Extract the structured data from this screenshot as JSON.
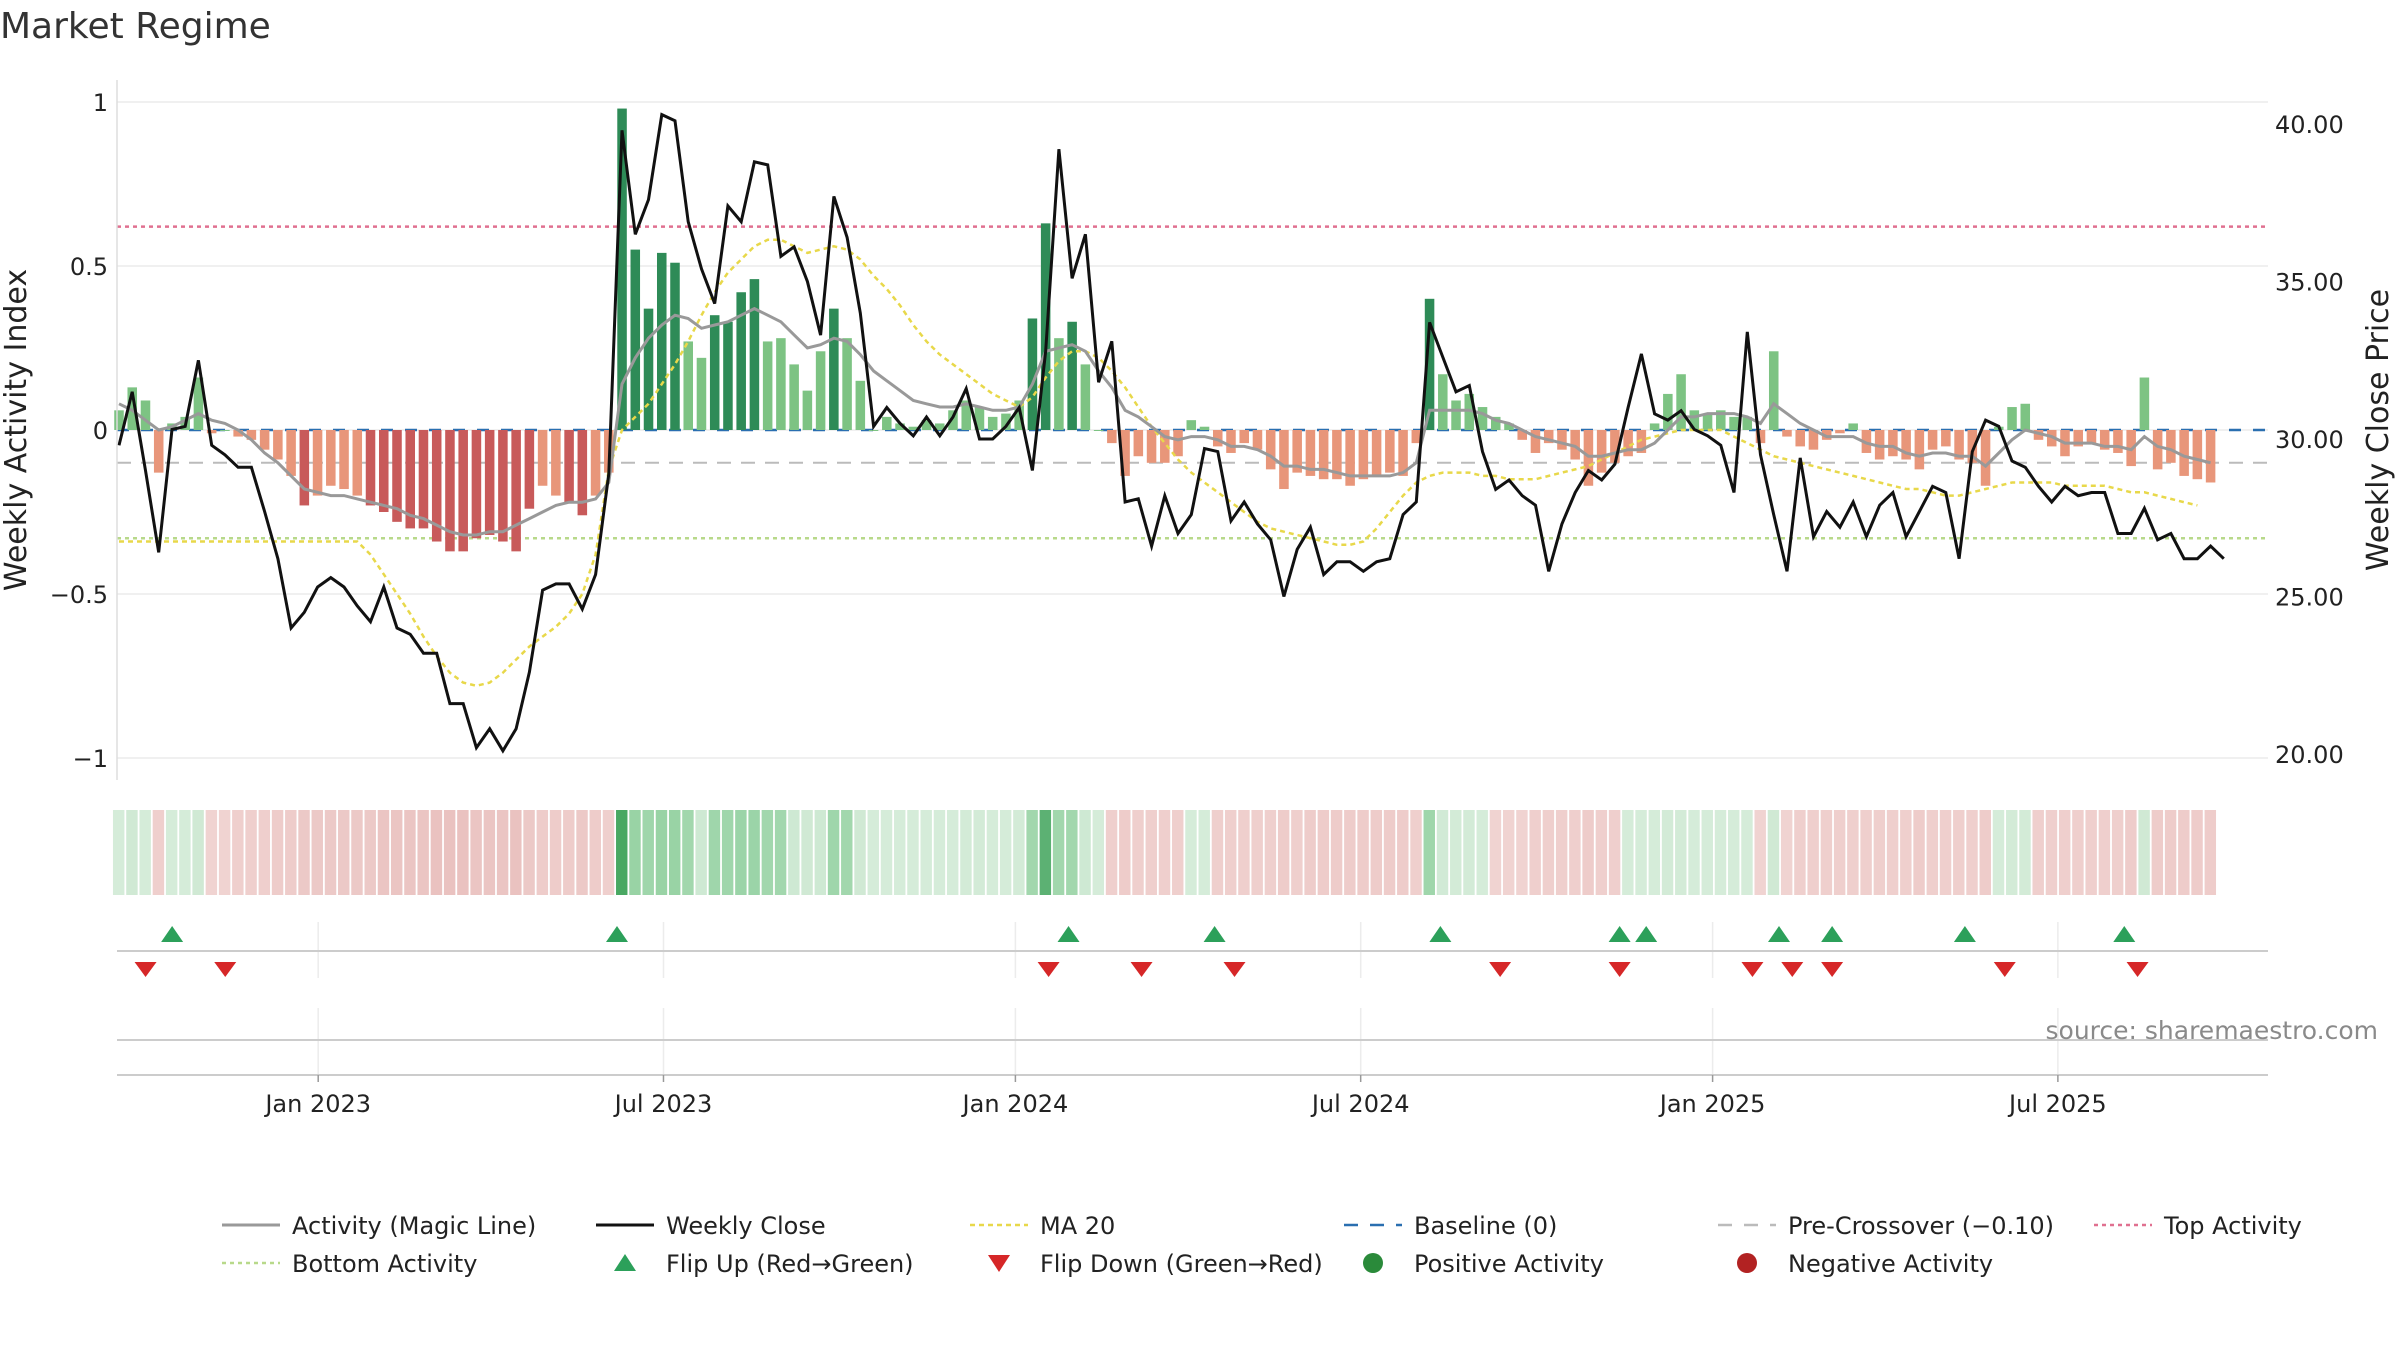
{
  "chart_data": {
    "type": "bar",
    "title": "Market Regime",
    "ylabel_left": "Weekly Activity Index",
    "ylabel_right": "Weekly Close Price",
    "source": "source: sharemaestro.com",
    "ylim_left": [
      -1.05,
      1.0
    ],
    "ylim_right": [
      19.5,
      41.0
    ],
    "left_ticks": [
      {
        "v": 1,
        "t": "1"
      },
      {
        "v": 0.5,
        "t": "0.5"
      },
      {
        "v": 0,
        "t": "0"
      },
      {
        "v": -0.5,
        "t": "−0.5"
      },
      {
        "v": -1,
        "t": "−1"
      }
    ],
    "right_ticks": [
      {
        "v": 40,
        "t": "40.00"
      },
      {
        "v": 35,
        "t": "35.00"
      },
      {
        "v": 30,
        "t": "30.00"
      },
      {
        "v": 25,
        "t": "25.00"
      },
      {
        "v": 20,
        "t": "20.00"
      }
    ],
    "x_ticks": [
      {
        "week": 30,
        "t": "Jan 2023"
      },
      {
        "week": 82,
        "t": "Jul 2023"
      },
      {
        "week": 135,
        "t": "Jan 2024"
      },
      {
        "week": 187,
        "t": "Jul 2024"
      },
      {
        "week": 240,
        "t": "Jan 2025"
      },
      {
        "week": 292,
        "t": "Jul 2025"
      }
    ],
    "levels": {
      "top_activity": 0.62,
      "bottom_activity": -0.33,
      "baseline": 0,
      "pre_crossover": -0.1
    },
    "colors": {
      "strong_green": "#2e8b57",
      "light_green": "#7dc383",
      "strong_red": "#c85a5a",
      "light_red": "#e8967a",
      "magic_line": "#999999",
      "close": "#111111",
      "ma20": "#e8d84a",
      "baseline": "#2a6fb0",
      "pre_crossover": "#bbbbbb",
      "top": "#e07090",
      "bottom": "#b8d98a",
      "flip_up": "#2ca05a",
      "flip_down": "#d62728",
      "positive": "#2a8a3a",
      "negative": "#b22222"
    },
    "weeks_total": 316,
    "activity": [
      0.06,
      0.13,
      0.09,
      -0.13,
      0.02,
      0.04,
      0.16,
      -0.01,
      0.0,
      -0.02,
      -0.03,
      -0.06,
      -0.09,
      -0.14,
      -0.23,
      -0.2,
      -0.17,
      -0.18,
      -0.2,
      -0.23,
      -0.25,
      -0.28,
      -0.3,
      -0.3,
      -0.34,
      -0.37,
      -0.37,
      -0.33,
      -0.32,
      -0.34,
      -0.37,
      -0.24,
      -0.17,
      -0.2,
      -0.22,
      -0.26,
      -0.2,
      -0.13,
      0.98,
      0.55,
      0.37,
      0.54,
      0.51,
      0.27,
      0.22,
      0.35,
      0.33,
      0.42,
      0.46,
      0.27,
      0.28,
      0.2,
      0.12,
      0.24,
      0.37,
      0.28,
      0.15,
      0.0,
      0.04,
      0.02,
      0.01,
      0.03,
      0.02,
      0.06,
      0.09,
      0.07,
      0.04,
      0.05,
      0.09,
      0.34,
      0.63,
      0.28,
      0.33,
      0.2,
      0.0,
      -0.04,
      -0.14,
      -0.08,
      -0.1,
      -0.1,
      -0.08,
      0.03,
      0.01,
      -0.05,
      -0.07,
      -0.04,
      -0.06,
      -0.12,
      -0.18,
      -0.13,
      -0.14,
      -0.15,
      -0.15,
      -0.17,
      -0.15,
      -0.14,
      -0.13,
      -0.14,
      -0.04,
      0.4,
      0.17,
      0.09,
      0.11,
      0.07,
      0.04,
      0.02,
      -0.03,
      -0.07,
      -0.04,
      -0.06,
      -0.09,
      -0.17,
      -0.13,
      -0.1,
      -0.08,
      -0.07,
      0.02,
      0.11,
      0.17,
      0.06,
      0.05,
      0.06,
      0.04,
      0.04,
      -0.04,
      0.24,
      -0.02,
      -0.05,
      -0.06,
      -0.03,
      -0.01,
      0.02,
      -0.07,
      -0.09,
      -0.08,
      -0.09,
      -0.12,
      -0.06,
      -0.05,
      -0.09,
      -0.1,
      -0.17,
      0.01,
      0.07,
      0.08,
      -0.03,
      -0.05,
      -0.08,
      -0.05,
      -0.04,
      -0.06,
      -0.07,
      -0.11,
      0.16,
      -0.12,
      -0.1,
      -0.14,
      -0.15,
      -0.16
    ],
    "close": [
      29.8,
      31.5,
      29.0,
      26.4,
      30.3,
      30.4,
      32.5,
      29.8,
      29.5,
      29.1,
      29.1,
      27.7,
      26.2,
      24.0,
      24.5,
      25.3,
      25.6,
      25.3,
      24.7,
      24.2,
      25.3,
      24.0,
      23.8,
      23.2,
      23.2,
      21.6,
      21.6,
      20.2,
      20.8,
      20.1,
      20.8,
      22.6,
      25.2,
      25.4,
      25.4,
      24.6,
      25.7,
      28.9,
      39.8,
      36.5,
      37.6,
      40.3,
      40.1,
      36.9,
      35.4,
      34.3,
      37.4,
      36.9,
      38.8,
      38.7,
      35.8,
      36.1,
      35.0,
      33.3,
      37.7,
      36.4,
      34.0,
      30.4,
      31.0,
      30.5,
      30.1,
      30.7,
      30.1,
      30.7,
      31.6,
      30.0,
      30.0,
      30.4,
      31.0,
      29.0,
      32.8,
      39.2,
      35.1,
      36.5,
      31.8,
      33.1,
      28.0,
      28.1,
      26.6,
      28.2,
      27.0,
      27.6,
      29.7,
      29.6,
      27.4,
      28.0,
      27.3,
      26.8,
      25.0,
      26.5,
      27.2,
      25.7,
      26.1,
      26.1,
      25.8,
      26.1,
      26.2,
      27.6,
      28.0,
      33.7,
      32.6,
      31.5,
      31.7,
      29.6,
      28.4,
      28.7,
      28.2,
      27.9,
      25.8,
      27.3,
      28.3,
      29.0,
      28.7,
      29.2,
      31.0,
      32.7,
      30.8,
      30.6,
      30.9,
      30.3,
      30.1,
      29.8,
      28.3,
      33.4,
      29.5,
      27.6,
      25.8,
      29.4,
      26.9,
      27.7,
      27.2,
      28.0,
      26.9,
      27.9,
      28.3,
      26.9,
      27.7,
      28.5,
      28.3,
      26.2,
      29.6,
      30.6,
      30.4,
      29.3,
      29.1,
      28.5,
      28.0,
      28.5,
      28.2,
      28.3,
      28.3,
      27.0,
      27.0,
      27.8,
      26.8,
      27.0,
      26.2,
      26.2,
      26.6,
      26.2
    ],
    "magic_line": [
      0.08,
      0.06,
      0.03,
      0.0,
      0.01,
      0.03,
      0.05,
      0.03,
      0.02,
      0.0,
      -0.03,
      -0.07,
      -0.1,
      -0.14,
      -0.18,
      -0.19,
      -0.2,
      -0.2,
      -0.21,
      -0.22,
      -0.23,
      -0.24,
      -0.26,
      -0.27,
      -0.29,
      -0.31,
      -0.32,
      -0.32,
      -0.31,
      -0.31,
      -0.29,
      -0.27,
      -0.25,
      -0.23,
      -0.22,
      -0.22,
      -0.21,
      -0.16,
      0.14,
      0.22,
      0.28,
      0.32,
      0.35,
      0.34,
      0.31,
      0.32,
      0.33,
      0.35,
      0.37,
      0.35,
      0.33,
      0.29,
      0.25,
      0.26,
      0.28,
      0.27,
      0.23,
      0.18,
      0.15,
      0.12,
      0.09,
      0.08,
      0.07,
      0.07,
      0.08,
      0.07,
      0.06,
      0.06,
      0.07,
      0.14,
      0.24,
      0.25,
      0.26,
      0.24,
      0.18,
      0.13,
      0.06,
      0.04,
      0.01,
      -0.02,
      -0.03,
      -0.02,
      -0.02,
      -0.03,
      -0.05,
      -0.05,
      -0.06,
      -0.08,
      -0.11,
      -0.11,
      -0.12,
      -0.12,
      -0.13,
      -0.14,
      -0.14,
      -0.14,
      -0.14,
      -0.13,
      -0.1,
      0.06,
      0.06,
      0.06,
      0.06,
      0.05,
      0.03,
      0.02,
      0.0,
      -0.02,
      -0.03,
      -0.04,
      -0.05,
      -0.08,
      -0.08,
      -0.07,
      -0.06,
      -0.06,
      -0.04,
      0.0,
      0.04,
      0.04,
      0.05,
      0.05,
      0.05,
      0.04,
      0.02,
      0.08,
      0.05,
      0.02,
      0.0,
      -0.02,
      -0.02,
      -0.02,
      -0.04,
      -0.05,
      -0.05,
      -0.07,
      -0.08,
      -0.07,
      -0.07,
      -0.08,
      -0.08,
      -0.11,
      -0.07,
      -0.03,
      0.0,
      -0.01,
      -0.02,
      -0.04,
      -0.04,
      -0.04,
      -0.05,
      -0.05,
      -0.06,
      -0.02,
      -0.05,
      -0.06,
      -0.08,
      -0.09,
      -0.1
    ],
    "ma20": [
      -0.34,
      -0.34,
      -0.34,
      -0.34,
      -0.34,
      -0.34,
      -0.34,
      -0.34,
      -0.34,
      -0.34,
      -0.34,
      -0.34,
      -0.34,
      -0.34,
      -0.34,
      -0.34,
      -0.34,
      -0.34,
      -0.34,
      -0.38,
      -0.44,
      -0.5,
      -0.56,
      -0.63,
      -0.69,
      -0.74,
      -0.77,
      -0.78,
      -0.77,
      -0.74,
      -0.7,
      -0.66,
      -0.63,
      -0.6,
      -0.56,
      -0.5,
      -0.38,
      -0.12,
      0.0,
      0.04,
      0.08,
      0.14,
      0.2,
      0.27,
      0.35,
      0.42,
      0.48,
      0.52,
      0.56,
      0.58,
      0.58,
      0.56,
      0.54,
      0.55,
      0.56,
      0.55,
      0.52,
      0.47,
      0.43,
      0.38,
      0.32,
      0.27,
      0.23,
      0.2,
      0.17,
      0.14,
      0.11,
      0.09,
      0.07,
      0.1,
      0.16,
      0.21,
      0.24,
      0.24,
      0.22,
      0.18,
      0.13,
      0.07,
      0.01,
      -0.04,
      -0.09,
      -0.13,
      -0.16,
      -0.19,
      -0.22,
      -0.25,
      -0.28,
      -0.3,
      -0.31,
      -0.32,
      -0.33,
      -0.34,
      -0.35,
      -0.35,
      -0.34,
      -0.3,
      -0.25,
      -0.2,
      -0.16,
      -0.14,
      -0.13,
      -0.13,
      -0.13,
      -0.14,
      -0.14,
      -0.15,
      -0.15,
      -0.15,
      -0.14,
      -0.13,
      -0.12,
      -0.11,
      -0.09,
      -0.07,
      -0.05,
      -0.03,
      -0.02,
      -0.01,
      0.0,
      0.0,
      0.0,
      0.0,
      -0.02,
      -0.04,
      -0.06,
      -0.08,
      -0.09,
      -0.1,
      -0.11,
      -0.12,
      -0.13,
      -0.14,
      -0.15,
      -0.16,
      -0.17,
      -0.18,
      -0.18,
      -0.19,
      -0.2,
      -0.2,
      -0.19,
      -0.18,
      -0.17,
      -0.16,
      -0.16,
      -0.16,
      -0.16,
      -0.17,
      -0.17,
      -0.17,
      -0.17,
      -0.18,
      -0.19,
      -0.19,
      -0.2,
      -0.21,
      -0.22,
      -0.23
    ],
    "regime_strip": [
      0.3,
      0.45,
      0.3,
      -0.3,
      0.3,
      0.3,
      0.45,
      -0.25,
      -0.25,
      -0.3,
      -0.3,
      -0.3,
      -0.35,
      -0.35,
      -0.4,
      -0.4,
      -0.4,
      -0.4,
      -0.4,
      -0.4,
      -0.45,
      -0.45,
      -0.45,
      -0.45,
      -0.5,
      -0.5,
      -0.5,
      -0.45,
      -0.45,
      -0.45,
      -0.5,
      -0.4,
      -0.35,
      -0.35,
      -0.35,
      -0.4,
      -0.35,
      -0.3,
      1.0,
      0.7,
      0.6,
      0.7,
      0.7,
      0.55,
      0.5,
      0.6,
      0.6,
      0.65,
      0.65,
      0.55,
      0.55,
      0.5,
      0.45,
      0.5,
      0.6,
      0.55,
      0.45,
      0.3,
      0.3,
      0.3,
      0.3,
      0.3,
      0.3,
      0.3,
      0.35,
      0.35,
      0.3,
      0.3,
      0.35,
      0.55,
      0.8,
      0.55,
      0.55,
      0.5,
      0.3,
      -0.3,
      -0.35,
      -0.3,
      -0.3,
      -0.3,
      -0.3,
      0.3,
      0.3,
      -0.3,
      -0.3,
      -0.3,
      -0.3,
      -0.3,
      -0.35,
      -0.3,
      -0.35,
      -0.35,
      -0.35,
      -0.35,
      -0.35,
      -0.35,
      -0.35,
      -0.35,
      -0.3,
      0.6,
      0.4,
      0.35,
      0.35,
      0.3,
      -0.25,
      -0.25,
      -0.25,
      -0.3,
      -0.3,
      -0.3,
      -0.3,
      -0.35,
      -0.3,
      -0.3,
      0.3,
      0.3,
      0.3,
      0.35,
      0.35,
      0.3,
      0.3,
      0.3,
      0.3,
      0.3,
      -0.25,
      0.45,
      -0.25,
      -0.3,
      -0.3,
      -0.3,
      -0.3,
      -0.3,
      -0.3,
      -0.3,
      -0.3,
      -0.3,
      -0.35,
      -0.3,
      -0.3,
      -0.3,
      -0.3,
      -0.35,
      0.3,
      0.35,
      0.35,
      -0.3,
      -0.3,
      -0.3,
      -0.3,
      -0.3,
      -0.3,
      -0.3,
      -0.35,
      0.45,
      -0.35,
      -0.35,
      -0.35,
      -0.35,
      -0.35
    ],
    "flip_up_weeks": [
      8,
      75,
      143,
      165,
      199,
      226,
      230,
      250,
      258,
      278,
      302
    ],
    "flip_down_weeks": [
      4,
      16,
      140,
      154,
      168,
      208,
      226,
      246,
      252,
      258,
      284,
      304
    ],
    "legend": [
      {
        "key": "magic",
        "label": "Activity (Magic Line)"
      },
      {
        "key": "close",
        "label": "Weekly Close"
      },
      {
        "key": "ma20",
        "label": "MA 20"
      },
      {
        "key": "baseline",
        "label": "Baseline (0)"
      },
      {
        "key": "precross",
        "label": "Pre-Crossover (−0.10)"
      },
      {
        "key": "top",
        "label": "Top Activity"
      },
      {
        "key": "bottom",
        "label": "Bottom Activity"
      },
      {
        "key": "flipup",
        "label": "Flip Up (Red→Green)"
      },
      {
        "key": "flipdown",
        "label": "Flip Down (Green→Red)"
      },
      {
        "key": "positive",
        "label": "Positive Activity"
      },
      {
        "key": "negative",
        "label": "Negative Activity"
      }
    ]
  }
}
